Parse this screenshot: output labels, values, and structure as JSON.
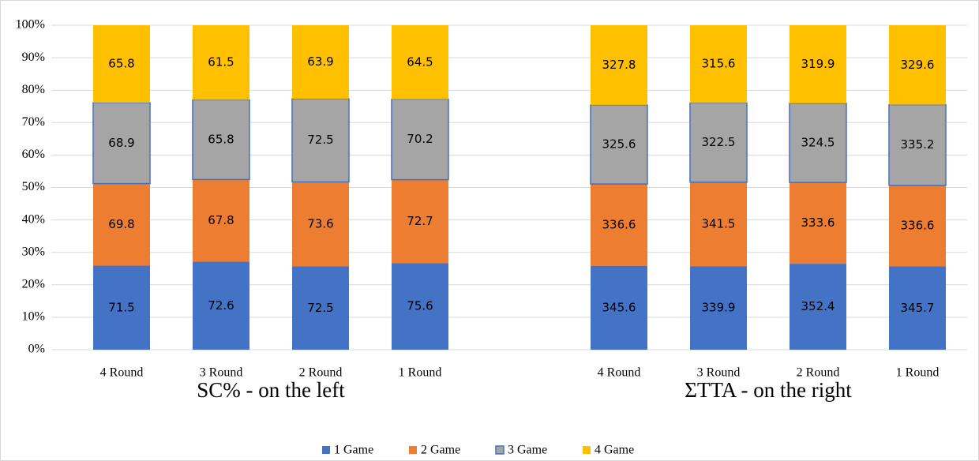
{
  "chart_data": {
    "type": "bar",
    "stacking": "percent",
    "categories": [
      "4 Round",
      "3 Round",
      "2 Round",
      "1 Round",
      null,
      "4 Round",
      "3 Round",
      "2 Round",
      "1 Round"
    ],
    "group_labels": [
      "SC% - on the left",
      "ΣTTA - on the right"
    ],
    "series": [
      {
        "name": "1 Game",
        "color": "#4472c4",
        "values": [
          71.5,
          72.6,
          72.5,
          75.6,
          null,
          345.6,
          339.9,
          352.4,
          345.7
        ]
      },
      {
        "name": "2 Game",
        "color": "#ed7d31",
        "values": [
          69.8,
          67.8,
          73.6,
          72.7,
          null,
          336.6,
          341.5,
          333.6,
          336.6
        ]
      },
      {
        "name": "3 Game",
        "color": "#a5a5a5",
        "values": [
          68.9,
          65.8,
          72.5,
          70.2,
          null,
          325.6,
          322.5,
          324.5,
          335.2
        ]
      },
      {
        "name": "4 Game",
        "color": "#ffc000",
        "values": [
          65.8,
          61.5,
          63.9,
          64.5,
          null,
          327.8,
          315.6,
          319.9,
          329.6
        ]
      }
    ],
    "ylim": [
      0,
      100
    ],
    "yticks": [
      {
        "value": 0,
        "label": "0%"
      },
      {
        "value": 10,
        "label": "10%"
      },
      {
        "value": 20,
        "label": "20%"
      },
      {
        "value": 30,
        "label": "30%"
      },
      {
        "value": 40,
        "label": "40%"
      },
      {
        "value": 50,
        "label": "50%"
      },
      {
        "value": 60,
        "label": "60%"
      },
      {
        "value": 70,
        "label": "70%"
      },
      {
        "value": 80,
        "label": "80%"
      },
      {
        "value": 90,
        "label": "90%"
      },
      {
        "value": 100,
        "label": "100%"
      }
    ],
    "grid": true,
    "legend": "bottom"
  }
}
